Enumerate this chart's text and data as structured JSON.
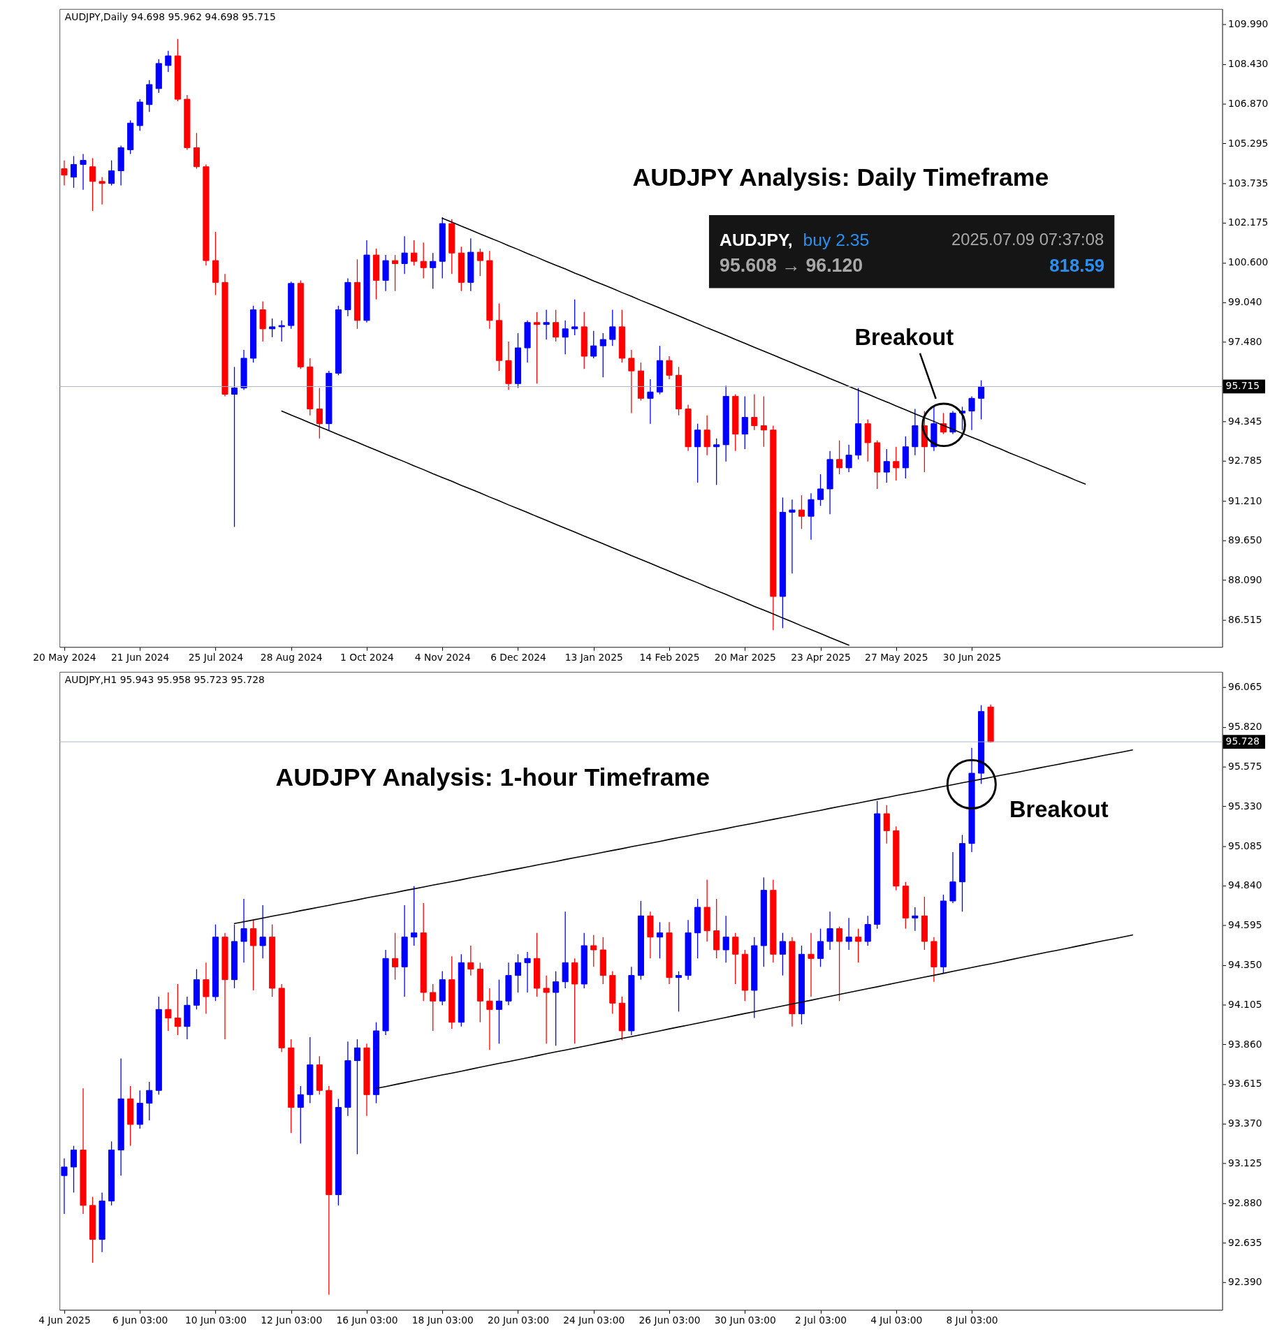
{
  "chart_data": [
    {
      "type": "candlestick",
      "title": "AUDJPY Analysis: Daily Timeframe",
      "categories": [
        "20 May 2024",
        null,
        null,
        null,
        null,
        null,
        null,
        null,
        "21 Jun 2024",
        null,
        null,
        null,
        null,
        null,
        null,
        null,
        "25 Jul 2024",
        null,
        null,
        null,
        null,
        null,
        null,
        null,
        "28 Aug 2024",
        null,
        null,
        null,
        null,
        null,
        null,
        null,
        "1 Oct 2024",
        null,
        null,
        null,
        null,
        null,
        null,
        null,
        "4 Nov 2024",
        null,
        null,
        null,
        null,
        null,
        null,
        null,
        "6 Dec 2024",
        null,
        null,
        null,
        null,
        null,
        null,
        null,
        "13 Jan 2025",
        null,
        null,
        null,
        null,
        null,
        null,
        null,
        "14 Feb 2025",
        null,
        null,
        null,
        null,
        null,
        null,
        null,
        "20 Mar 2025",
        null,
        null,
        null,
        null,
        null,
        null,
        null,
        "23 Apr 2025",
        null,
        null,
        null,
        null,
        null,
        null,
        null,
        "27 May 2025",
        null,
        null,
        null,
        null,
        null,
        null,
        null,
        "30 Jun 2025",
        null,
        null,
        null,
        null,
        null,
        null,
        null,
        null,
        null,
        null,
        null,
        null,
        null,
        null,
        null,
        null,
        null,
        null,
        null,
        null,
        null,
        null,
        null,
        null,
        null,
        null
      ],
      "ohlc": [
        [
          104.3,
          104.63,
          103.64,
          104.05
        ],
        [
          103.97,
          104.8,
          103.55,
          104.47
        ],
        [
          104.47,
          104.88,
          103.47,
          104.63
        ],
        [
          104.38,
          104.72,
          102.64,
          103.8
        ],
        [
          103.8,
          103.97,
          102.89,
          103.72
        ],
        [
          103.72,
          104.63,
          103.64,
          104.22
        ],
        [
          104.22,
          105.21,
          103.64,
          105.13
        ],
        [
          105.05,
          106.21,
          104.88,
          106.1
        ],
        [
          106.0,
          107.04,
          105.8,
          106.93
        ],
        [
          106.83,
          107.79,
          106.54,
          107.62
        ],
        [
          107.46,
          108.62,
          107.29,
          108.45
        ],
        [
          108.37,
          108.95,
          108.12,
          108.75
        ],
        [
          108.75,
          109.42,
          106.96,
          107.04
        ],
        [
          107.04,
          107.21,
          105.05,
          105.13
        ],
        [
          105.13,
          105.71,
          104.3,
          104.38
        ],
        [
          104.38,
          104.47,
          100.48,
          100.68
        ],
        [
          100.68,
          101.81,
          99.32,
          99.82
        ],
        [
          99.82,
          100.15,
          95.33,
          95.41
        ],
        [
          95.41,
          96.49,
          90.18,
          95.66
        ],
        [
          95.66,
          97.16,
          95.58,
          96.83
        ],
        [
          96.83,
          98.9,
          96.66,
          98.74
        ],
        [
          98.74,
          99.07,
          97.49,
          97.99
        ],
        [
          97.99,
          98.4,
          97.66,
          98.07
        ],
        [
          98.07,
          98.32,
          97.49,
          98.12
        ],
        [
          98.12,
          99.85,
          97.99,
          99.78
        ],
        [
          99.78,
          99.9,
          96.41,
          96.49
        ],
        [
          96.49,
          96.83,
          94.58,
          94.83
        ],
        [
          94.83,
          95.66,
          93.67,
          94.25
        ],
        [
          94.25,
          96.33,
          94.0,
          96.24
        ],
        [
          96.24,
          98.9,
          96.16,
          98.74
        ],
        [
          98.74,
          99.98,
          98.49,
          99.82
        ],
        [
          99.82,
          100.73,
          97.99,
          98.32
        ],
        [
          98.32,
          101.48,
          98.24,
          100.9
        ],
        [
          100.9,
          101.15,
          99.15,
          99.9
        ],
        [
          99.9,
          100.9,
          99.48,
          100.68
        ],
        [
          100.68,
          100.9,
          99.48,
          100.56
        ],
        [
          100.56,
          101.64,
          100.15,
          100.98
        ],
        [
          100.98,
          101.48,
          100.48,
          100.65
        ],
        [
          100.65,
          101.39,
          99.98,
          100.4
        ],
        [
          100.4,
          100.98,
          99.57,
          100.65
        ],
        [
          100.65,
          102.39,
          99.98,
          102.14
        ],
        [
          102.14,
          102.31,
          100.15,
          100.98
        ],
        [
          100.98,
          101.23,
          99.48,
          99.82
        ],
        [
          99.82,
          101.56,
          99.48,
          101.01
        ],
        [
          101.01,
          101.15,
          100.07,
          100.68
        ],
        [
          100.68,
          101.06,
          97.99,
          98.32
        ],
        [
          98.32,
          98.99,
          96.33,
          96.74
        ],
        [
          96.74,
          97.49,
          95.58,
          95.83
        ],
        [
          95.83,
          97.82,
          95.66,
          97.24
        ],
        [
          97.24,
          98.32,
          96.66,
          98.24
        ],
        [
          98.24,
          98.65,
          95.83,
          98.16
        ],
        [
          98.16,
          98.74,
          97.57,
          98.24
        ],
        [
          98.24,
          98.74,
          97.49,
          97.66
        ],
        [
          97.66,
          98.32,
          96.99,
          97.99
        ],
        [
          97.99,
          99.15,
          97.74,
          98.07
        ],
        [
          98.07,
          98.65,
          96.41,
          96.91
        ],
        [
          96.91,
          97.91,
          96.83,
          97.32
        ],
        [
          97.32,
          97.82,
          96.08,
          97.57
        ],
        [
          97.57,
          98.74,
          97.32,
          98.07
        ],
        [
          98.07,
          98.74,
          96.66,
          96.83
        ],
        [
          96.83,
          97.16,
          94.67,
          96.33
        ],
        [
          96.33,
          96.66,
          95.16,
          95.25
        ],
        [
          95.25,
          96.0,
          94.25,
          95.5
        ],
        [
          95.5,
          97.32,
          95.41,
          96.74
        ],
        [
          96.74,
          96.91,
          96.0,
          96.16
        ],
        [
          96.16,
          96.49,
          94.58,
          94.83
        ],
        [
          94.83,
          95.0,
          93.17,
          93.34
        ],
        [
          93.34,
          94.25,
          91.93,
          94.0
        ],
        [
          94.0,
          94.58,
          93.01,
          93.34
        ],
        [
          93.34,
          93.67,
          91.84,
          93.42
        ],
        [
          93.42,
          95.75,
          92.76,
          95.33
        ],
        [
          95.33,
          95.41,
          93.17,
          93.84
        ],
        [
          93.84,
          95.33,
          93.25,
          94.5
        ],
        [
          94.5,
          95.41,
          94.0,
          94.17
        ],
        [
          94.17,
          95.33,
          93.34,
          94.0
        ],
        [
          94.0,
          94.17,
          86.11,
          87.44
        ],
        [
          87.44,
          91.34,
          86.19,
          90.76
        ],
        [
          90.76,
          91.26,
          88.35,
          90.85
        ],
        [
          90.85,
          91.43,
          90.1,
          90.6
        ],
        [
          90.6,
          91.51,
          89.68,
          91.26
        ],
        [
          91.26,
          92.26,
          91.01,
          91.68
        ],
        [
          91.68,
          93.17,
          90.68,
          92.84
        ],
        [
          92.84,
          93.59,
          92.26,
          92.51
        ],
        [
          92.51,
          93.42,
          92.34,
          93.01
        ],
        [
          93.01,
          95.66,
          92.84,
          94.25
        ],
        [
          94.25,
          94.42,
          92.76,
          93.5
        ],
        [
          93.5,
          93.59,
          91.68,
          92.34
        ],
        [
          92.34,
          93.25,
          91.93,
          92.76
        ],
        [
          92.76,
          93.34,
          92.01,
          92.51
        ],
        [
          92.51,
          93.75,
          92.09,
          93.34
        ],
        [
          93.34,
          94.83,
          93.01,
          94.17
        ],
        [
          94.17,
          94.75,
          92.34,
          93.34
        ],
        [
          93.34,
          94.92,
          93.17,
          94.25
        ],
        [
          94.25,
          94.67,
          93.84,
          93.92
        ],
        [
          93.92,
          94.75,
          93.84,
          94.67
        ],
        [
          94.67,
          94.92,
          94.0,
          94.75
        ],
        [
          94.75,
          95.33,
          94.0,
          95.25
        ],
        [
          95.25,
          95.962,
          94.42,
          95.715
        ],
        null,
        null,
        null,
        null,
        null,
        null,
        null,
        null,
        null,
        null,
        null,
        null,
        null,
        null,
        null,
        null,
        null,
        null,
        null,
        null,
        null,
        null,
        null,
        null,
        null
      ],
      "colors": [
        "#ff0000",
        "#0000ff",
        "#0000ff",
        "#ff0000",
        "#ff0000",
        "#0000ff",
        "#0000ff",
        "#0000ff",
        "#0000ff",
        "#0000ff",
        "#0000ff",
        "#0000ff",
        "#ff0000",
        "#ff0000",
        "#ff0000",
        "#ff0000",
        "#ff0000",
        "#ff0000",
        "#0000ff",
        "#0000ff",
        "#0000ff",
        "#ff0000",
        "#0000ff",
        "#0000ff",
        "#0000ff",
        "#ff0000",
        "#ff0000",
        "#ff0000",
        "#0000ff",
        "#0000ff",
        "#0000ff",
        "#ff0000",
        "#0000ff",
        "#ff0000",
        "#0000ff",
        "#ff0000",
        "#0000ff",
        "#ff0000",
        "#ff0000",
        "#0000ff",
        "#0000ff",
        "#ff0000",
        "#ff0000",
        "#0000ff",
        "#ff0000",
        "#ff0000",
        "#ff0000",
        "#ff0000",
        "#0000ff",
        "#0000ff",
        "#ff0000",
        "#0000ff",
        "#ff0000",
        "#0000ff",
        "#0000ff",
        "#ff0000",
        "#0000ff",
        "#0000ff",
        "#0000ff",
        "#ff0000",
        "#ff0000",
        "#ff0000",
        "#0000ff",
        "#0000ff",
        "#ff0000",
        "#ff0000",
        "#ff0000",
        "#0000ff",
        "#ff0000",
        "#0000ff",
        "#0000ff",
        "#ff0000",
        "#0000ff",
        "#ff0000",
        "#ff0000",
        "#ff0000",
        "#0000ff",
        "#0000ff",
        "#ff0000",
        "#0000ff",
        "#0000ff",
        "#0000ff",
        "#ff0000",
        "#0000ff",
        "#0000ff",
        "#ff0000",
        "#ff0000",
        "#0000ff",
        "#ff0000",
        "#0000ff",
        "#0000ff",
        "#ff0000",
        "#0000ff",
        "#ff0000",
        "#0000ff",
        "#0000ff",
        "#0000ff",
        "#0000ff",
        null,
        null,
        null,
        null,
        null,
        null,
        null,
        null,
        null,
        null,
        null,
        null,
        null,
        null,
        null,
        null,
        null,
        null,
        null,
        null,
        null,
        null,
        null,
        null,
        null
      ],
      "series": [
        {
          "type": "line",
          "color": "#000000",
          "values": [
            null,
            null,
            null,
            null,
            null,
            null,
            null,
            null,
            null,
            null,
            null,
            null,
            null,
            null,
            null,
            null,
            null,
            null,
            null,
            null,
            null,
            null,
            null,
            null,
            null,
            null,
            null,
            null,
            null,
            null,
            null,
            null,
            null,
            null,
            null,
            null,
            null,
            null,
            null,
            null,
            102.35,
            102.2,
            102.04,
            101.89,
            101.73,
            101.58,
            101.43,
            101.27,
            101.12,
            100.96,
            100.81,
            100.65,
            100.5,
            100.35,
            100.19,
            100.04,
            99.88,
            99.73,
            99.58,
            99.42,
            99.27,
            99.11,
            98.96,
            98.81,
            98.65,
            98.5,
            98.34,
            98.19,
            98.03,
            97.88,
            97.73,
            97.57,
            97.42,
            97.26,
            97.11,
            96.96,
            96.8,
            96.65,
            96.49,
            96.34,
            96.19,
            96.03,
            95.88,
            95.72,
            95.57,
            95.42,
            95.26,
            95.11,
            94.95,
            94.8,
            94.64,
            94.49,
            94.34,
            94.18,
            94.03,
            93.87,
            93.72,
            93.57,
            93.41,
            93.26,
            93.1,
            92.95,
            92.8,
            92.64,
            92.49,
            92.33,
            92.18,
            92.02,
            91.87,
            null,
            null,
            null,
            null,
            null,
            null,
            null,
            null,
            null,
            null,
            null,
            null,
            null,
            null
          ]
        },
        {
          "type": "line",
          "color": "#000000",
          "values": [
            null,
            null,
            null,
            null,
            null,
            null,
            null,
            null,
            null,
            null,
            null,
            null,
            null,
            null,
            null,
            null,
            null,
            null,
            null,
            null,
            null,
            null,
            null,
            94.75,
            94.59,
            94.44,
            94.28,
            94.13,
            93.98,
            93.82,
            93.67,
            93.52,
            93.36,
            93.21,
            93.05,
            92.9,
            92.75,
            92.59,
            92.44,
            92.28,
            92.13,
            91.98,
            91.82,
            91.67,
            91.52,
            91.36,
            91.21,
            91.05,
            90.9,
            90.75,
            90.59,
            90.44,
            90.28,
            90.13,
            89.98,
            89.82,
            89.67,
            89.52,
            89.36,
            89.21,
            89.05,
            88.9,
            88.75,
            88.59,
            88.44,
            88.28,
            88.13,
            87.98,
            87.82,
            87.67,
            87.52,
            87.36,
            87.21,
            87.05,
            86.9,
            86.75,
            86.59,
            86.44,
            86.28,
            86.13,
            85.98,
            85.82,
            85.67,
            85.52,
            null,
            null,
            null,
            null,
            null,
            null,
            null,
            null,
            null,
            null,
            null,
            null,
            null,
            null,
            null,
            null,
            null,
            null,
            null,
            null,
            null,
            null,
            null,
            null,
            null,
            null,
            null,
            null,
            null,
            null,
            null,
            null,
            null,
            null,
            null,
            null,
            null,
            null,
            null
          ]
        }
      ],
      "ylim": [
        85.45,
        110.6
      ],
      "yticks": [
        {
          "value": 109.99,
          "label": "109.990"
        },
        {
          "value": 108.43,
          "label": "108.430"
        },
        {
          "value": 106.87,
          "label": "106.870"
        },
        105.295,
        103.735,
        102.175,
        {
          "value": 100.6,
          "label": "100.600"
        },
        {
          "value": 99.04,
          "label": "99.040"
        },
        {
          "value": 97.48,
          "label": "97.480"
        },
        {
          "value": 95.905,
          "label": null
        },
        94.345,
        92.785,
        {
          "value": 91.21,
          "label": "91.210"
        },
        {
          "value": 89.65,
          "label": "89.650"
        },
        {
          "value": 88.09,
          "label": "88.090"
        },
        86.515
      ],
      "ref_lines": [
        {
          "axis": "y",
          "value": 95.715,
          "label": "95.715",
          "color": "#aab4c8"
        }
      ],
      "annotations": [
        "AUDJPY,Daily 94.698 95.962 94.698 95.715",
        "AUDJPY,",
        "buy 2.35",
        "2025.07.09 07:37:08",
        "95.608 → 96.120",
        "818.59",
        "Breakout"
      ]
    },
    {
      "type": "candlestick",
      "title": "AUDJPY Analysis: 1-hour Timeframe",
      "categories": [
        "4 Jun 2025",
        null,
        null,
        null,
        null,
        null,
        null,
        null,
        "6 Jun 03:00",
        null,
        null,
        null,
        null,
        null,
        null,
        null,
        "10 Jun 03:00",
        null,
        null,
        null,
        null,
        null,
        null,
        null,
        "12 Jun 03:00",
        null,
        null,
        null,
        null,
        null,
        null,
        null,
        "16 Jun 03:00",
        null,
        null,
        null,
        null,
        null,
        null,
        null,
        "18 Jun 03:00",
        null,
        null,
        null,
        null,
        null,
        null,
        null,
        "20 Jun 03:00",
        null,
        null,
        null,
        null,
        null,
        null,
        null,
        "24 Jun 03:00",
        null,
        null,
        null,
        null,
        null,
        null,
        null,
        "26 Jun 03:00",
        null,
        null,
        null,
        null,
        null,
        null,
        null,
        "30 Jun 03:00",
        null,
        null,
        null,
        null,
        null,
        null,
        null,
        "2 Jul 03:00",
        null,
        null,
        null,
        null,
        null,
        null,
        null,
        "4 Jul 03:00",
        null,
        null,
        null,
        null,
        null,
        null,
        null,
        "8 Jul 03:00",
        null,
        null,
        null,
        null,
        null,
        null,
        null,
        null,
        null,
        null,
        null,
        null,
        null,
        null,
        null,
        null,
        null,
        null,
        null,
        null,
        null,
        null,
        null,
        null,
        null,
        null
      ],
      "ohlc": [
        [
          93.049,
          93.155,
          92.813,
          93.102
        ],
        [
          93.102,
          93.233,
          92.944,
          93.207
        ],
        [
          93.207,
          93.588,
          92.813,
          92.865
        ],
        [
          92.865,
          92.918,
          92.511,
          92.655
        ],
        [
          92.655,
          92.944,
          92.576,
          92.892
        ],
        [
          92.892,
          93.26,
          92.865,
          93.207
        ],
        [
          93.207,
          93.772,
          93.049,
          93.523
        ],
        [
          93.523,
          93.602,
          93.233,
          93.365
        ],
        [
          93.365,
          93.575,
          93.339,
          93.496
        ],
        [
          93.496,
          93.628,
          93.391,
          93.575
        ],
        [
          93.575,
          94.154,
          93.549,
          94.075
        ],
        [
          94.075,
          94.18,
          93.943,
          94.022
        ],
        [
          94.022,
          94.232,
          93.917,
          93.97
        ],
        [
          93.97,
          94.154,
          93.891,
          94.101
        ],
        [
          94.101,
          94.324,
          94.075,
          94.259
        ],
        [
          94.259,
          94.364,
          94.048,
          94.154
        ],
        [
          94.154,
          94.6,
          94.127,
          94.522
        ],
        [
          94.522,
          94.548,
          93.891,
          94.259
        ],
        [
          94.259,
          94.6,
          94.206,
          94.495
        ],
        [
          94.495,
          94.758,
          94.364,
          94.574
        ],
        [
          94.574,
          94.627,
          94.193,
          94.469
        ],
        [
          94.469,
          94.719,
          94.39,
          94.522
        ],
        [
          94.522,
          94.6,
          94.154,
          94.206
        ],
        [
          94.206,
          94.232,
          93.812,
          93.838
        ],
        [
          93.838,
          93.891,
          93.312,
          93.47
        ],
        [
          93.47,
          93.602,
          93.247,
          93.549
        ],
        [
          93.549,
          93.904,
          93.496,
          93.733
        ],
        [
          93.733,
          93.786,
          93.549,
          93.575
        ],
        [
          93.575,
          93.602,
          92.313,
          92.931
        ],
        [
          92.931,
          93.523,
          92.865,
          93.47
        ],
        [
          93.47,
          93.877,
          93.417,
          93.759
        ],
        [
          93.759,
          93.891,
          93.181,
          93.838
        ],
        [
          93.838,
          93.864,
          93.417,
          93.549
        ],
        [
          93.549,
          93.996,
          93.496,
          93.943
        ],
        [
          93.943,
          94.443,
          93.917,
          94.39
        ],
        [
          94.39,
          94.548,
          94.259,
          94.338
        ],
        [
          94.338,
          94.719,
          94.154,
          94.522
        ],
        [
          94.522,
          94.837,
          94.469,
          94.548
        ],
        [
          94.548,
          94.732,
          94.127,
          94.18
        ],
        [
          94.18,
          94.232,
          93.943,
          94.127
        ],
        [
          94.127,
          94.311,
          94.101,
          94.259
        ],
        [
          94.259,
          94.403,
          93.956,
          93.996
        ],
        [
          93.996,
          94.416,
          93.97,
          94.364
        ],
        [
          94.364,
          94.469,
          94.285,
          94.324
        ],
        [
          94.324,
          94.364,
          93.996,
          94.127
        ],
        [
          94.127,
          94.206,
          93.825,
          94.075
        ],
        [
          94.075,
          94.259,
          93.864,
          94.127
        ],
        [
          94.127,
          94.364,
          94.101,
          94.285
        ],
        [
          94.285,
          94.416,
          94.18,
          94.364
        ],
        [
          94.364,
          94.43,
          94.18,
          94.39
        ],
        [
          94.39,
          94.548,
          94.154,
          94.206
        ],
        [
          94.206,
          94.285,
          93.864,
          94.18
        ],
        [
          94.18,
          94.311,
          93.851,
          94.246
        ],
        [
          94.246,
          94.679,
          94.206,
          94.364
        ],
        [
          94.364,
          94.39,
          93.864,
          94.232
        ],
        [
          94.232,
          94.548,
          94.206,
          94.469
        ],
        [
          94.469,
          94.535,
          94.338,
          94.443
        ],
        [
          94.443,
          94.522,
          94.232,
          94.285
        ],
        [
          94.285,
          94.311,
          94.048,
          94.114
        ],
        [
          94.114,
          94.154,
          93.885,
          93.943
        ],
        [
          93.943,
          94.338,
          93.917,
          94.285
        ],
        [
          94.285,
          94.745,
          94.259,
          94.653
        ],
        [
          94.653,
          94.679,
          94.39,
          94.522
        ],
        [
          94.522,
          94.614,
          94.39,
          94.548
        ],
        [
          94.548,
          94.614,
          94.232,
          94.272
        ],
        [
          94.272,
          94.311,
          94.062,
          94.285
        ],
        [
          94.285,
          94.627,
          94.259,
          94.548
        ],
        [
          94.548,
          94.758,
          94.39,
          94.706
        ],
        [
          94.706,
          94.877,
          94.495,
          94.561
        ],
        [
          94.561,
          94.758,
          94.39,
          94.443
        ],
        [
          94.443,
          94.653,
          94.364,
          94.522
        ],
        [
          94.522,
          94.548,
          94.232,
          94.416
        ],
        [
          94.416,
          94.443,
          94.127,
          94.193
        ],
        [
          94.193,
          94.522,
          94.022,
          94.469
        ],
        [
          94.469,
          94.89,
          94.338,
          94.811
        ],
        [
          94.811,
          94.877,
          94.364,
          94.416
        ],
        [
          94.416,
          94.548,
          94.285,
          94.495
        ],
        [
          94.495,
          94.522,
          93.97,
          94.048
        ],
        [
          94.048,
          94.469,
          93.983,
          94.416
        ],
        [
          94.416,
          94.548,
          94.154,
          94.39
        ],
        [
          94.39,
          94.574,
          94.338,
          94.495
        ],
        [
          94.495,
          94.679,
          94.443,
          94.574
        ],
        [
          94.574,
          94.587,
          94.127,
          94.495
        ],
        [
          94.495,
          94.64,
          94.443,
          94.522
        ],
        [
          94.522,
          94.574,
          94.364,
          94.495
        ],
        [
          94.495,
          94.653,
          94.469,
          94.6
        ],
        [
          94.6,
          95.363,
          94.574,
          95.284
        ],
        [
          95.284,
          95.337,
          95.1,
          95.179
        ],
        [
          95.179,
          95.205,
          94.811,
          94.837
        ],
        [
          94.837,
          94.863,
          94.574,
          94.64
        ],
        [
          94.64,
          94.706,
          94.561,
          94.653
        ],
        [
          94.653,
          94.771,
          94.443,
          94.495
        ],
        [
          94.495,
          94.522,
          94.246,
          94.338
        ],
        [
          94.338,
          94.784,
          94.298,
          94.745
        ],
        [
          94.745,
          95.047,
          94.732,
          94.863
        ],
        [
          94.863,
          95.153,
          94.679,
          95.1
        ],
        [
          95.1,
          95.691,
          95.047,
          95.534
        ],
        [
          95.534,
          95.954,
          95.468,
          95.915
        ],
        [
          95.943,
          95.958,
          95.723,
          95.728
        ],
        null,
        null,
        null,
        null,
        null,
        null,
        null,
        null,
        null,
        null,
        null,
        null,
        null,
        null,
        null,
        null,
        null,
        null,
        null,
        null,
        null,
        null,
        null,
        null
      ],
      "colors": [
        "#0000ff",
        "#0000ff",
        "#ff0000",
        "#ff0000",
        "#0000ff",
        "#0000ff",
        "#0000ff",
        "#ff0000",
        "#0000ff",
        "#0000ff",
        "#0000ff",
        "#ff0000",
        "#ff0000",
        "#0000ff",
        "#0000ff",
        "#ff0000",
        "#0000ff",
        "#ff0000",
        "#0000ff",
        "#0000ff",
        "#ff0000",
        "#0000ff",
        "#ff0000",
        "#ff0000",
        "#ff0000",
        "#0000ff",
        "#0000ff",
        "#ff0000",
        "#ff0000",
        "#0000ff",
        "#0000ff",
        "#0000ff",
        "#ff0000",
        "#0000ff",
        "#0000ff",
        "#ff0000",
        "#0000ff",
        "#0000ff",
        "#ff0000",
        "#ff0000",
        "#0000ff",
        "#ff0000",
        "#0000ff",
        "#ff0000",
        "#ff0000",
        "#ff0000",
        "#0000ff",
        "#0000ff",
        "#0000ff",
        "#0000ff",
        "#ff0000",
        "#ff0000",
        "#0000ff",
        "#0000ff",
        "#ff0000",
        "#0000ff",
        "#ff0000",
        "#ff0000",
        "#ff0000",
        "#ff0000",
        "#0000ff",
        "#0000ff",
        "#ff0000",
        "#0000ff",
        "#ff0000",
        "#0000ff",
        "#0000ff",
        "#0000ff",
        "#ff0000",
        "#ff0000",
        "#0000ff",
        "#ff0000",
        "#ff0000",
        "#0000ff",
        "#0000ff",
        "#ff0000",
        "#0000ff",
        "#ff0000",
        "#0000ff",
        "#ff0000",
        "#0000ff",
        "#0000ff",
        "#ff0000",
        "#0000ff",
        "#ff0000",
        "#0000ff",
        "#0000ff",
        "#ff0000",
        "#ff0000",
        "#ff0000",
        "#0000ff",
        "#ff0000",
        "#ff0000",
        "#0000ff",
        "#0000ff",
        "#0000ff",
        "#0000ff",
        "#0000ff",
        "#ff0000",
        null,
        null,
        null,
        null,
        null,
        null,
        null,
        null,
        null,
        null,
        null,
        null,
        null,
        null,
        null,
        null,
        null,
        null,
        null,
        null,
        null,
        null,
        null,
        null
      ],
      "series": [
        {
          "type": "line",
          "color": "#000000",
          "values": [
            null,
            null,
            null,
            null,
            null,
            null,
            null,
            null,
            null,
            null,
            null,
            null,
            null,
            null,
            null,
            null,
            null,
            null,
            94.606,
            94.617,
            94.628,
            94.639,
            94.651,
            94.662,
            94.673,
            94.685,
            94.696,
            94.707,
            94.718,
            94.73,
            94.741,
            94.752,
            94.764,
            94.775,
            94.786,
            94.797,
            94.809,
            94.82,
            94.831,
            94.843,
            94.854,
            94.865,
            94.876,
            94.888,
            94.899,
            94.91,
            94.922,
            94.933,
            94.944,
            94.955,
            94.967,
            94.978,
            94.989,
            95.001,
            95.012,
            95.023,
            95.034,
            95.046,
            95.057,
            95.068,
            95.08,
            95.091,
            95.102,
            95.113,
            95.125,
            95.136,
            95.147,
            95.159,
            95.17,
            95.181,
            95.192,
            95.204,
            95.215,
            95.226,
            95.238,
            95.249,
            95.26,
            95.271,
            95.283,
            95.294,
            95.305,
            95.317,
            95.328,
            95.339,
            95.35,
            95.362,
            95.373,
            95.384,
            95.396,
            95.407,
            95.418,
            95.429,
            95.441,
            95.452,
            95.463,
            95.475,
            95.486,
            95.497,
            95.508,
            95.52,
            95.531,
            95.542,
            95.554,
            95.565,
            95.576,
            95.587,
            95.599,
            95.61,
            95.621,
            95.632,
            95.644,
            95.655,
            95.666,
            95.678,
            null,
            null,
            null,
            null,
            null,
            null,
            null,
            null,
            null
          ]
        },
        {
          "type": "line",
          "color": "#000000",
          "values": [
            null,
            null,
            null,
            null,
            null,
            null,
            null,
            null,
            null,
            null,
            null,
            null,
            null,
            null,
            null,
            null,
            null,
            null,
            null,
            null,
            null,
            null,
            null,
            null,
            null,
            null,
            null,
            null,
            null,
            null,
            null,
            null,
            null,
            93.588,
            93.599,
            93.611,
            93.623,
            93.635,
            93.647,
            93.659,
            93.671,
            93.682,
            93.694,
            93.706,
            93.718,
            93.73,
            93.742,
            93.753,
            93.765,
            93.777,
            93.789,
            93.801,
            93.813,
            93.824,
            93.836,
            93.848,
            93.86,
            93.872,
            93.884,
            93.896,
            93.907,
            93.919,
            93.931,
            93.943,
            93.955,
            93.967,
            93.978,
            93.99,
            94.002,
            94.014,
            94.026,
            94.038,
            94.05,
            94.061,
            94.073,
            94.085,
            94.097,
            94.109,
            94.121,
            94.132,
            94.144,
            94.156,
            94.168,
            94.18,
            94.192,
            94.204,
            94.215,
            94.227,
            94.239,
            94.251,
            94.263,
            94.275,
            94.286,
            94.298,
            94.31,
            94.322,
            94.334,
            94.346,
            94.357,
            94.369,
            94.381,
            94.393,
            94.405,
            94.417,
            94.429,
            94.44,
            94.452,
            94.464,
            94.476,
            94.488,
            94.5,
            94.511,
            94.523,
            94.535,
            null,
            null,
            null,
            null,
            null,
            null,
            null,
            null,
            null
          ]
        }
      ],
      "ylim": [
        92.22,
        96.16
      ],
      "yticks": [
        96.065,
        {
          "value": 95.82,
          "label": "95.820"
        },
        95.575,
        {
          "value": 95.33,
          "label": "95.330"
        },
        95.085,
        {
          "value": 94.84,
          "label": "94.840"
        },
        94.595,
        {
          "value": 94.35,
          "label": "94.350"
        },
        94.105,
        {
          "value": 93.86,
          "label": "93.860"
        },
        93.615,
        {
          "value": 93.37,
          "label": "93.370"
        },
        93.125,
        {
          "value": 92.88,
          "label": "92.880"
        },
        92.635,
        {
          "value": 92.39,
          "label": "92.390"
        }
      ],
      "ref_lines": [
        {
          "axis": "y",
          "value": 95.728,
          "label": "95.728",
          "color": "#aab4c8"
        }
      ],
      "annotations": [
        "AUDJPY,H1 95.943 95.958 95.723 95.728",
        "Breakout"
      ]
    }
  ]
}
